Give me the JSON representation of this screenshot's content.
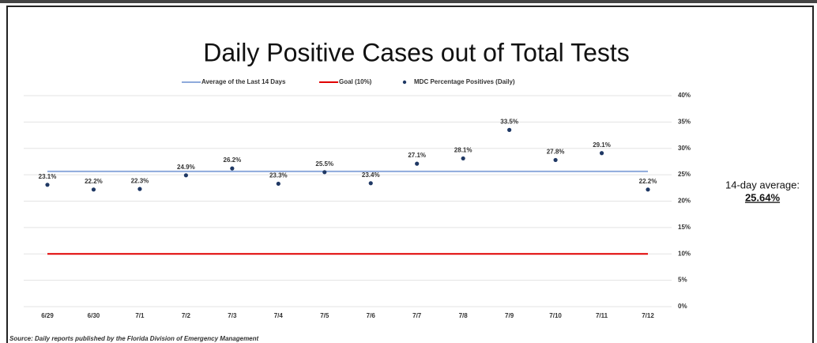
{
  "chart_data": {
    "type": "scatter",
    "title": "Daily Positive Cases out of Total Tests",
    "categories": [
      "6/29",
      "6/30",
      "7/1",
      "7/2",
      "7/3",
      "7/4",
      "7/5",
      "7/6",
      "7/7",
      "7/8",
      "7/9",
      "7/10",
      "7/11",
      "7/12"
    ],
    "series": [
      {
        "name": "MDC Percentage Positives (Daily)",
        "color": "#1f3864",
        "values": [
          23.1,
          22.2,
          22.3,
          24.9,
          26.2,
          23.3,
          25.5,
          23.4,
          27.1,
          28.1,
          33.5,
          27.8,
          29.1,
          22.2
        ],
        "value_labels": [
          "23.1%",
          "22.2%",
          "22.3%",
          "24.9%",
          "26.2%",
          "23.3%",
          "25.5%",
          "23.4%",
          "27.1%",
          "28.1%",
          "33.5%",
          "27.8%",
          "29.1%",
          "22.2%"
        ]
      }
    ],
    "reference_lines": [
      {
        "name": "Average of the Last 14 Days",
        "color": "#8eaadb",
        "value": 25.64,
        "value_label": "25.64%"
      },
      {
        "name": "Goal (10%)",
        "color": "#e00000",
        "value": 10
      }
    ],
    "annotation": "14-day average:",
    "source": "Source: Daily reports published by the Florida Division of Emergency Management",
    "ylim": [
      0,
      40
    ],
    "yticks": [
      {
        "value": 0,
        "label": "0%"
      },
      {
        "value": 5,
        "label": "5%"
      },
      {
        "value": 10,
        "label": "10%"
      },
      {
        "value": 15,
        "label": "15%"
      },
      {
        "value": 20,
        "label": "20%"
      },
      {
        "value": 25,
        "label": "25%"
      },
      {
        "value": 30,
        "label": "30%"
      },
      {
        "value": 35,
        "label": "35%"
      },
      {
        "value": 40,
        "label": "40%"
      }
    ],
    "grid": true
  }
}
